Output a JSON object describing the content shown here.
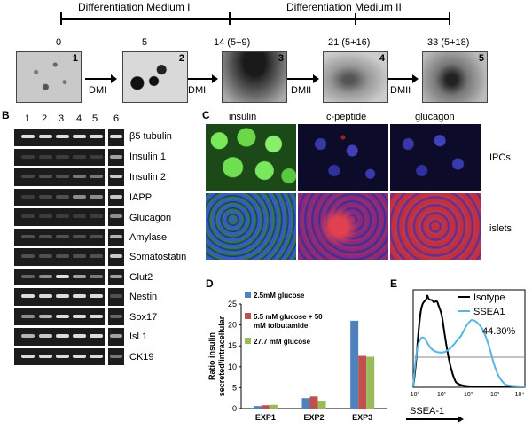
{
  "panel_a": {
    "medium1": "Differentiation Medium I",
    "medium2": "Differentiation Medium II",
    "timepoints": [
      "0",
      "5",
      "14 (5+9)",
      "21 (5+16)",
      "33 (5+18)"
    ],
    "image_numbers": [
      "1",
      "2",
      "3",
      "4",
      "5"
    ],
    "arrow_labels": [
      "DMI",
      "DMI",
      "DMII",
      "DMII"
    ]
  },
  "panel_b": {
    "letter": "B",
    "lanes": [
      "1",
      "2",
      "3",
      "4",
      "5",
      "6"
    ],
    "genes": [
      "β5 tubulin",
      "Insulin 1",
      "Insulin 2",
      "IAPP",
      "Glucagon",
      "Amylase",
      "Somatostatin",
      "Glut2",
      "Nestin",
      "Sox17",
      "Isl 1",
      "CK19"
    ]
  },
  "panel_c": {
    "letter": "C",
    "columns": [
      "insulin",
      "c-peptide",
      "glucagon"
    ],
    "rows": [
      "IPCs",
      "islets"
    ]
  },
  "panel_d": {
    "letter": "D",
    "chart_data": {
      "type": "bar",
      "categories": [
        "EXP1",
        "EXP2",
        "EXP3"
      ],
      "series": [
        {
          "name": "2.5mM glucose",
          "values": [
            0.6,
            2.5,
            21.0
          ],
          "color": "#4f81bd"
        },
        {
          "name": "5.5 mM glucose + 50 mM tolbutamide",
          "values": [
            0.8,
            2.9,
            12.6
          ],
          "color": "#c0504d"
        },
        {
          "name": "27.7 mM glucose",
          "values": [
            0.9,
            1.9,
            12.4
          ],
          "color": "#9bbb59"
        }
      ],
      "ylabel_line1": "Ratio insulin",
      "ylabel_line2": "secreted/intracellular",
      "ylim": [
        0,
        25
      ],
      "yticks": [
        "0",
        "5",
        "10",
        "15",
        "20",
        "25"
      ]
    }
  },
  "panel_e": {
    "letter": "E",
    "chart_data": {
      "type": "line",
      "legend": [
        "Isotype",
        "SSEA1"
      ],
      "annotation": "44.30%",
      "xlabel": "SSEA-1",
      "xticks": [
        "10⁰",
        "10¹",
        "10²",
        "10³",
        "10⁴"
      ],
      "series_colors": [
        "#000000",
        "#5ab4e0"
      ]
    }
  }
}
